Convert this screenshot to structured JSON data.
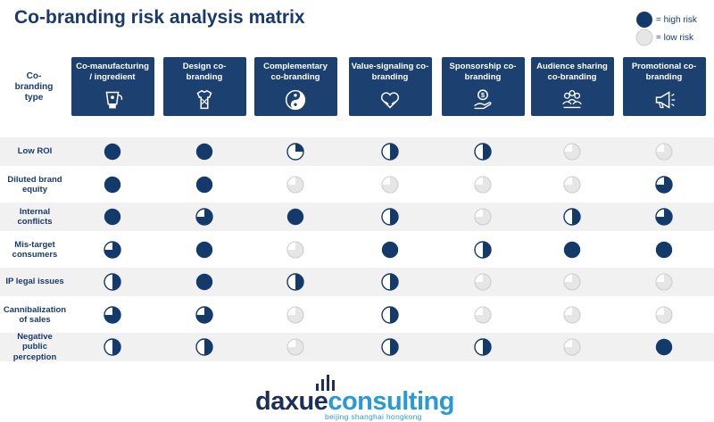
{
  "title": "Co-branding risk analysis matrix",
  "legend": {
    "high_label": "= high risk",
    "low_label": "= low risk",
    "high_color": "#143a6b",
    "low_color": "#d8d8d8"
  },
  "corner_label": "Co-\nbranding\ntype",
  "columns": [
    {
      "label": "Co-manufacturing / ingredient",
      "icon": "blender-icon"
    },
    {
      "label": "Design co-branding",
      "icon": "tshirt-icon"
    },
    {
      "label": "Complementary co-branding",
      "icon": "yin-yang-icon"
    },
    {
      "label": "Value-signaling co-branding",
      "icon": "heart-hands-icon"
    },
    {
      "label": "Sponsorship co-branding",
      "icon": "money-hand-icon"
    },
    {
      "label": "Audience sharing co-branding",
      "icon": "people-group-icon"
    },
    {
      "label": "Promotional co-branding",
      "icon": "megaphone-icon"
    }
  ],
  "rows": [
    {
      "label": "Low ROI",
      "levels": [
        1,
        1,
        0.25,
        0.5,
        0.5,
        0,
        0
      ]
    },
    {
      "label": "Diluted brand equity",
      "levels": [
        1,
        1,
        0,
        0,
        0,
        0,
        0.75
      ]
    },
    {
      "label": "Internal conflicts",
      "levels": [
        1,
        0.75,
        1,
        0.5,
        0,
        0.5,
        0.75
      ]
    },
    {
      "label": "Mis-target consumers",
      "levels": [
        0.75,
        1,
        0,
        1,
        0.5,
        1,
        1
      ]
    },
    {
      "label": "IP legal issues",
      "levels": [
        0.5,
        1,
        0.5,
        0.5,
        0,
        0,
        0
      ]
    },
    {
      "label": "Cannibalization of sales",
      "levels": [
        0.75,
        0.75,
        0,
        0.5,
        0,
        0,
        0
      ]
    },
    {
      "label": "Negative public perception",
      "levels": [
        0.5,
        0.5,
        0,
        0.5,
        0.5,
        0,
        1
      ]
    }
  ],
  "logo": {
    "part1": "daxue",
    "part2": "consulting",
    "tagline": "beijing shanghai hongkong"
  }
}
